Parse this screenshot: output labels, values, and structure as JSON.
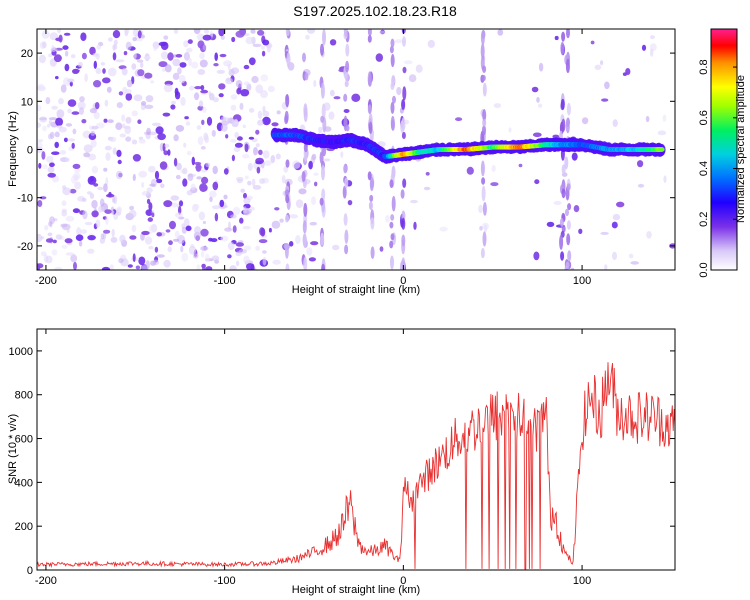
{
  "title": "S197.2025.102.18.23.R18",
  "chart_data": [
    {
      "type": "heatmap",
      "xlabel": "Height of straight line (km)",
      "ylabel": "Frequency (Hz)",
      "xlim": [
        -205,
        152
      ],
      "ylim": [
        -25,
        25
      ],
      "xticks": [
        -200,
        -100,
        0,
        100
      ],
      "yticks": [
        20,
        10,
        0,
        -10,
        -20
      ],
      "colorbar": {
        "label": "Normalized spectral amplitude",
        "range": [
          0.0,
          0.95
        ],
        "ticks": [
          0.0,
          0.2,
          0.4,
          0.6,
          0.8
        ],
        "tick_labels": [
          "0.0",
          "0.2",
          "0.4",
          "0.6",
          "0.8"
        ],
        "colormap": [
          "#ffffff",
          "#d8c8f8",
          "#8040e0",
          "#4000ff",
          "#0060ff",
          "#00d0ff",
          "#00ff60",
          "#a0ff00",
          "#ffff00",
          "#ff8000",
          "#ff0000",
          "#ff2090"
        ]
      },
      "signal_track": [
        {
          "x": -72,
          "y": 3,
          "v": 0.35
        },
        {
          "x": -60,
          "y": 3,
          "v": 0.35
        },
        {
          "x": -50,
          "y": 2,
          "v": 0.3
        },
        {
          "x": -40,
          "y": 1.5,
          "v": 0.28
        },
        {
          "x": -30,
          "y": 2,
          "v": 0.3
        },
        {
          "x": -20,
          "y": 1,
          "v": 0.3
        },
        {
          "x": -10,
          "y": -1.5,
          "v": 0.32
        },
        {
          "x": 0,
          "y": -1,
          "v": 0.82
        },
        {
          "x": 10,
          "y": -0.5,
          "v": 0.5
        },
        {
          "x": 20,
          "y": 0,
          "v": 0.45
        },
        {
          "x": 35,
          "y": 0,
          "v": 0.85
        },
        {
          "x": 50,
          "y": 0.5,
          "v": 0.55
        },
        {
          "x": 65,
          "y": 0.5,
          "v": 0.85
        },
        {
          "x": 80,
          "y": 1,
          "v": 0.5
        },
        {
          "x": 90,
          "y": 1,
          "v": 0.4
        },
        {
          "x": 100,
          "y": 1,
          "v": 0.35
        },
        {
          "x": 115,
          "y": 0,
          "v": 0.4
        },
        {
          "x": 130,
          "y": 0,
          "v": 0.45
        },
        {
          "x": 145,
          "y": 0,
          "v": 0.6
        }
      ]
    },
    {
      "type": "line",
      "xlabel": "Height of straight line (km)",
      "ylabel": "SNR (10 * v/v)",
      "xlim": [
        -205,
        152
      ],
      "ylim": [
        0,
        1100
      ],
      "xticks": [
        -200,
        -100,
        0,
        100
      ],
      "yticks": [
        0,
        200,
        400,
        600,
        800,
        1000
      ],
      "color": "#e83030",
      "series": [
        {
          "x": [
            -205,
            -150,
            -100,
            -75,
            -60,
            -50,
            -40,
            -35,
            -30,
            -25,
            -20,
            -15,
            -10,
            -5,
            -2,
            0,
            5,
            10,
            20,
            30,
            40,
            50,
            60,
            70,
            75,
            80,
            82,
            85,
            88,
            90,
            95,
            100,
            105,
            110,
            115,
            120,
            130,
            140,
            152
          ],
          "y": [
            25,
            30,
            25,
            30,
            50,
            80,
            130,
            180,
            300,
            120,
            80,
            90,
            110,
            60,
            40,
            380,
            320,
            400,
            500,
            600,
            650,
            700,
            720,
            660,
            650,
            700,
            280,
            250,
            150,
            80,
            30,
            650,
            800,
            700,
            900,
            720,
            700,
            700,
            650
          ]
        }
      ]
    }
  ]
}
